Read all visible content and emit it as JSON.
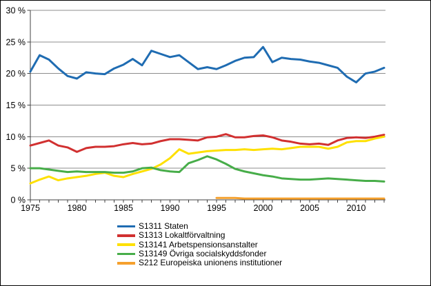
{
  "chart_data": {
    "type": "line",
    "title": "",
    "xlabel": "",
    "ylabel": "",
    "unit": "%",
    "grid": true,
    "legend_position": "bottom-left",
    "xlim": [
      1975,
      2013.6
    ],
    "ylim": [
      0,
      30
    ],
    "x": [
      1975,
      1976,
      1977,
      1978,
      1979,
      1980,
      1981,
      1982,
      1983,
      1984,
      1985,
      1986,
      1987,
      1988,
      1989,
      1990,
      1991,
      1992,
      1993,
      1994,
      1995,
      1996,
      1997,
      1998,
      1999,
      2000,
      2001,
      2002,
      2003,
      2004,
      2005,
      2006,
      2007,
      2008,
      2009,
      2010,
      2011,
      2012,
      2013
    ],
    "x_tick_years": [
      1975,
      1980,
      1985,
      1990,
      1995,
      2000,
      2005,
      2010
    ],
    "x_tick_labels": [
      "1975",
      "1980",
      "1985",
      "1990",
      "1995",
      "2000",
      "2005",
      "2010"
    ],
    "y_ticks": [
      {
        "value": 0,
        "label": "0 %"
      },
      {
        "value": 5,
        "label": "5 %"
      },
      {
        "value": 10,
        "label": "10 %"
      },
      {
        "value": 15,
        "label": "15 %"
      },
      {
        "value": 20,
        "label": "20 %"
      },
      {
        "value": 25,
        "label": "25 %"
      },
      {
        "value": 30,
        "label": "30 %"
      }
    ],
    "series": [
      {
        "name": "S1311 Staten",
        "color": "#1f6cb2",
        "values": [
          20.3,
          22.9,
          22.2,
          20.8,
          19.6,
          19.2,
          20.2,
          20.0,
          19.9,
          20.8,
          21.4,
          22.3,
          21.3,
          23.6,
          23.1,
          22.6,
          22.9,
          21.8,
          20.7,
          21.0,
          20.7,
          21.3,
          22.0,
          22.5,
          22.6,
          24.2,
          21.8,
          22.5,
          22.3,
          22.2,
          21.9,
          21.7,
          21.3,
          20.9,
          19.5,
          18.6,
          20.0,
          20.3,
          20.9
        ]
      },
      {
        "name": "S1313 Lokaltförvaltning",
        "color": "#d13030",
        "values": [
          8.6,
          9.0,
          9.4,
          8.6,
          8.3,
          7.6,
          8.2,
          8.4,
          8.4,
          8.5,
          8.8,
          9.0,
          8.8,
          8.9,
          9.3,
          9.6,
          9.6,
          9.5,
          9.4,
          9.9,
          10.0,
          10.4,
          9.9,
          9.9,
          10.1,
          10.2,
          9.9,
          9.4,
          9.2,
          8.9,
          8.8,
          8.9,
          8.7,
          9.4,
          9.8,
          9.9,
          9.8,
          10.0,
          10.3
        ]
      },
      {
        "name": "S13141 Arbetspensionsanstalter",
        "color": "#fee000",
        "values": [
          2.6,
          3.2,
          3.7,
          3.1,
          3.4,
          3.6,
          3.8,
          4.1,
          4.3,
          3.8,
          3.6,
          4.1,
          4.5,
          4.9,
          5.6,
          6.6,
          8.0,
          7.3,
          7.5,
          7.7,
          7.8,
          7.9,
          7.9,
          8.0,
          7.9,
          8.0,
          8.1,
          8.0,
          8.2,
          8.4,
          8.4,
          8.4,
          8.1,
          8.4,
          9.1,
          9.3,
          9.3,
          9.7,
          10.0
        ]
      },
      {
        "name": "S13149 Övriga socialskyddsfonder",
        "color": "#47ad49",
        "values": [
          5.0,
          5.0,
          4.8,
          4.6,
          4.4,
          4.5,
          4.4,
          4.4,
          4.4,
          4.3,
          4.3,
          4.5,
          5.0,
          5.1,
          4.7,
          4.5,
          4.4,
          5.8,
          6.3,
          6.9,
          6.4,
          5.7,
          4.9,
          4.5,
          4.2,
          3.9,
          3.7,
          3.4,
          3.3,
          3.2,
          3.2,
          3.3,
          3.4,
          3.3,
          3.2,
          3.1,
          3.0,
          3.0,
          2.9
        ]
      },
      {
        "name": "S212 Europeiska unionens institutioner",
        "color": "#f5a02d",
        "values": [
          null,
          null,
          null,
          null,
          null,
          null,
          null,
          null,
          null,
          null,
          null,
          null,
          null,
          null,
          null,
          null,
          null,
          null,
          null,
          null,
          0.3,
          0.3,
          0.3,
          0.2,
          0.2,
          0.2,
          0.2,
          0.2,
          0.2,
          0.2,
          0.2,
          0.2,
          0.2,
          0.2,
          0.2,
          0.2,
          0.2,
          0.2,
          0.2
        ]
      }
    ],
    "colors": {
      "gridline": "#8c8c8c",
      "axis": "#404040",
      "text": "#000000",
      "background": "#ffffff"
    }
  }
}
